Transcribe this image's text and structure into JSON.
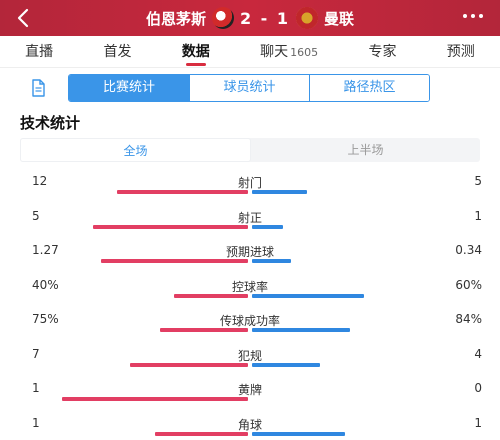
{
  "header": {
    "home_team": "伯恩茅斯",
    "away_team": "曼联",
    "score": "2 - 1",
    "colors": {
      "bar": "#c8283d",
      "home_crest": "#d12a2a",
      "away_crest": "#d8a32a"
    }
  },
  "tabs": [
    {
      "label": "直播"
    },
    {
      "label": "首发"
    },
    {
      "label": "数据",
      "active": true
    },
    {
      "label": "聊天",
      "count": "1605"
    },
    {
      "label": "专家"
    },
    {
      "label": "预测"
    }
  ],
  "segments": [
    {
      "label": "比赛统计",
      "active": true
    },
    {
      "label": "球员统计"
    },
    {
      "label": "路径热区"
    }
  ],
  "section_title": "技术统计",
  "period": [
    {
      "label": "全场",
      "active": true
    },
    {
      "label": "上半场"
    }
  ],
  "colors": {
    "home_bar": "#e23e63",
    "away_bar": "#2f87e0",
    "accent": "#3a95e8"
  },
  "stats": [
    {
      "name": "射门",
      "left": "12",
      "right": "5",
      "left_frac": 0.706,
      "right_frac": 0.294
    },
    {
      "name": "射正",
      "left": "5",
      "right": "1",
      "left_frac": 0.833,
      "right_frac": 0.167
    },
    {
      "name": "预期进球",
      "left": "1.27",
      "right": "0.34",
      "left_frac": 0.789,
      "right_frac": 0.211
    },
    {
      "name": "控球率",
      "left": "40%",
      "right": "60%",
      "left_frac": 0.4,
      "right_frac": 0.6
    },
    {
      "name": "传球成功率",
      "left": "75%",
      "right": "84%",
      "left_frac": 0.472,
      "right_frac": 0.528
    },
    {
      "name": "犯规",
      "left": "7",
      "right": "4",
      "left_frac": 0.636,
      "right_frac": 0.364
    },
    {
      "name": "黄牌",
      "left": "1",
      "right": "0",
      "left_frac": 1.0,
      "right_frac": 0.0
    },
    {
      "name": "角球",
      "left": "1",
      "right": "1",
      "left_frac": 0.5,
      "right_frac": 0.5
    }
  ]
}
